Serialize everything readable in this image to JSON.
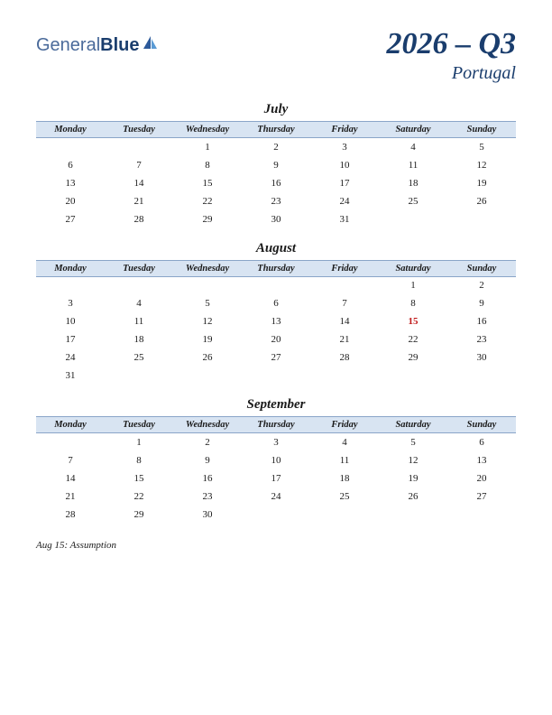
{
  "logo": {
    "part1": "General",
    "part2": "Blue"
  },
  "title": {
    "main": "2026 – Q3",
    "sub": "Portugal"
  },
  "dayHeaders": [
    "Monday",
    "Tuesday",
    "Wednesday",
    "Thursday",
    "Friday",
    "Saturday",
    "Sunday"
  ],
  "months": [
    {
      "name": "July",
      "weeks": [
        [
          "",
          "",
          "1",
          "2",
          "3",
          "4",
          "5"
        ],
        [
          "6",
          "7",
          "8",
          "9",
          "10",
          "11",
          "12"
        ],
        [
          "13",
          "14",
          "15",
          "16",
          "17",
          "18",
          "19"
        ],
        [
          "20",
          "21",
          "22",
          "23",
          "24",
          "25",
          "26"
        ],
        [
          "27",
          "28",
          "29",
          "30",
          "31",
          "",
          ""
        ]
      ],
      "holidays": []
    },
    {
      "name": "August",
      "weeks": [
        [
          "",
          "",
          "",
          "",
          "",
          "1",
          "2"
        ],
        [
          "3",
          "4",
          "5",
          "6",
          "7",
          "8",
          "9"
        ],
        [
          "10",
          "11",
          "12",
          "13",
          "14",
          "15",
          "16"
        ],
        [
          "17",
          "18",
          "19",
          "20",
          "21",
          "22",
          "23"
        ],
        [
          "24",
          "25",
          "26",
          "27",
          "28",
          "29",
          "30"
        ],
        [
          "31",
          "",
          "",
          "",
          "",
          "",
          ""
        ]
      ],
      "holidays": [
        "15"
      ]
    },
    {
      "name": "September",
      "weeks": [
        [
          "",
          "1",
          "2",
          "3",
          "4",
          "5",
          "6"
        ],
        [
          "7",
          "8",
          "9",
          "10",
          "11",
          "12",
          "13"
        ],
        [
          "14",
          "15",
          "16",
          "17",
          "18",
          "19",
          "20"
        ],
        [
          "21",
          "22",
          "23",
          "24",
          "25",
          "26",
          "27"
        ],
        [
          "28",
          "29",
          "30",
          "",
          "",
          "",
          ""
        ]
      ],
      "holidays": []
    }
  ],
  "holidayList": [
    {
      "text": "Aug 15: Assumption"
    }
  ],
  "colors": {
    "headerBg": "#d8e4f2",
    "headerBorder": "#8aa5c8",
    "titleColor": "#1a3d6d",
    "holidayColor": "#c01818",
    "textColor": "#1a1a1a",
    "pageBg": "#ffffff"
  }
}
